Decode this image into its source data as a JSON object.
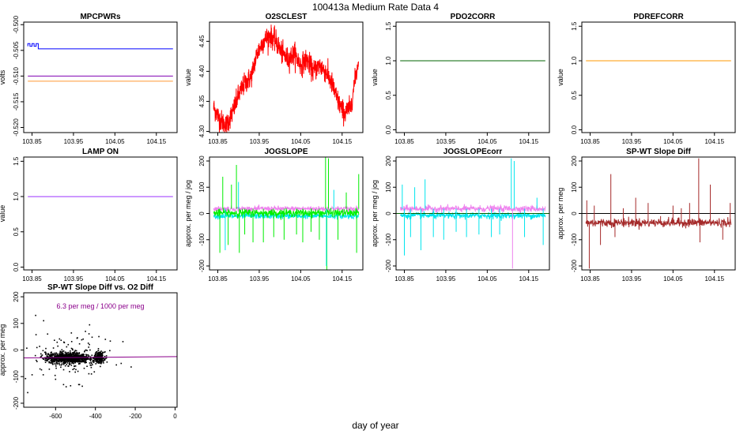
{
  "page": {
    "title": "100413a   Medium Rate Data 4",
    "xlabel": "day of year"
  },
  "chart_data": [
    {
      "id": "mpcpwrs",
      "type": "line",
      "title": "MPCPWRs",
      "ylabel": "volts",
      "xlim": [
        103.83,
        104.2
      ],
      "ylim": [
        -0.521,
        -0.4995
      ],
      "xticks": [
        103.85,
        103.95,
        104.05,
        104.15
      ],
      "xtick_labels": [
        "103.85",
        "103.95",
        "104.05",
        "104.15"
      ],
      "yticks": [
        -0.52,
        -0.515,
        -0.51,
        -0.505,
        -0.5
      ],
      "ytick_labels": [
        "-0.520",
        "-0.515",
        "-0.510",
        "-0.505",
        "-0.500"
      ],
      "series": [
        {
          "name": "blue",
          "color": "#0000ff",
          "x": [
            103.84,
            103.84,
            103.845,
            103.845,
            103.85,
            103.85,
            103.855,
            103.855,
            103.86,
            103.86,
            103.865,
            103.865,
            104.19
          ],
          "y": [
            -0.5042,
            -0.5037,
            -0.5037,
            -0.5042,
            -0.5042,
            -0.5037,
            -0.5037,
            -0.5042,
            -0.5042,
            -0.5037,
            -0.5037,
            -0.5047,
            -0.5047
          ]
        },
        {
          "name": "purple",
          "color": "#7f00b2",
          "x": [
            103.84,
            104.19
          ],
          "y": [
            -0.51,
            -0.51
          ]
        },
        {
          "name": "orange",
          "color": "#ff9933",
          "x": [
            103.84,
            104.19
          ],
          "y": [
            -0.511,
            -0.511
          ]
        }
      ]
    },
    {
      "id": "o2sclest",
      "type": "line",
      "title": "O2SCLEST",
      "ylabel": "value",
      "xlim": [
        103.83,
        104.2
      ],
      "ylim": [
        4.298,
        4.482
      ],
      "xticks": [
        103.85,
        103.95,
        104.05,
        104.15
      ],
      "xtick_labels": [
        "103.85",
        "103.95",
        "104.05",
        "104.15"
      ],
      "yticks": [
        4.3,
        4.35,
        4.4,
        4.45
      ],
      "ytick_labels": [
        "4.30",
        "4.35",
        "4.40",
        "4.45"
      ],
      "series": [
        {
          "name": "O2SCLEST",
          "color": "#ff0000",
          "noise": 0.009,
          "x": [
            103.84,
            103.855,
            103.87,
            103.885,
            103.9,
            103.915,
            103.93,
            103.945,
            103.96,
            103.975,
            103.99,
            104.005,
            104.02,
            104.035,
            104.05,
            104.065,
            104.08,
            104.095,
            104.11,
            104.125,
            104.14,
            104.155,
            104.17,
            104.19
          ],
          "y": [
            4.34,
            4.32,
            4.31,
            4.33,
            4.36,
            4.38,
            4.39,
            4.43,
            4.45,
            4.46,
            4.45,
            4.43,
            4.42,
            4.43,
            4.41,
            4.42,
            4.4,
            4.41,
            4.4,
            4.38,
            4.35,
            4.33,
            4.34,
            4.42
          ]
        }
      ]
    },
    {
      "id": "pdo2corr",
      "type": "line",
      "title": "PDO2CORR",
      "ylabel": "value",
      "xlim": [
        103.83,
        104.2
      ],
      "ylim": [
        -0.04,
        1.56
      ],
      "xticks": [
        103.85,
        103.95,
        104.05,
        104.15
      ],
      "xtick_labels": [
        "103.85",
        "103.95",
        "104.05",
        "104.15"
      ],
      "yticks": [
        0.0,
        0.5,
        1.0,
        1.5
      ],
      "ytick_labels": [
        "0.0",
        "0.5",
        "1.0",
        "1.5"
      ],
      "series": [
        {
          "name": "PDO2CORR",
          "color": "#006400",
          "x": [
            103.84,
            104.19
          ],
          "y": [
            1.0,
            1.0
          ]
        }
      ]
    },
    {
      "id": "pdrefcorr",
      "type": "line",
      "title": "PDREFCORR",
      "ylabel": "value",
      "xlim": [
        103.83,
        104.2
      ],
      "ylim": [
        -0.04,
        1.56
      ],
      "xticks": [
        103.85,
        103.95,
        104.05,
        104.15
      ],
      "xtick_labels": [
        "103.85",
        "103.95",
        "104.05",
        "104.15"
      ],
      "yticks": [
        0.0,
        0.5,
        1.0,
        1.5
      ],
      "ytick_labels": [
        "0.0",
        "0.5",
        "1.0",
        "1.5"
      ],
      "series": [
        {
          "name": "PDREFCORR",
          "color": "#ff9900",
          "x": [
            103.84,
            104.19
          ],
          "y": [
            1.0,
            1.0
          ]
        }
      ]
    },
    {
      "id": "lampon",
      "type": "line",
      "title": "LAMP ON",
      "ylabel": "value",
      "xlim": [
        103.83,
        104.2
      ],
      "ylim": [
        -0.04,
        1.56
      ],
      "xticks": [
        103.85,
        103.95,
        104.05,
        104.15
      ],
      "xtick_labels": [
        "103.85",
        "103.95",
        "104.05",
        "104.15"
      ],
      "yticks": [
        0.0,
        0.5,
        1.0,
        1.5
      ],
      "ytick_labels": [
        "0.0",
        "0.5",
        "1.0",
        "1.5"
      ],
      "series": [
        {
          "name": "LAMP ON",
          "color": "#9b30ff",
          "x": [
            103.84,
            104.19
          ],
          "y": [
            1.0,
            1.0
          ]
        }
      ]
    },
    {
      "id": "jogslope",
      "type": "line",
      "title": "JOGSLOPE",
      "ylabel": "approx. per meg / jog",
      "xlim": [
        103.83,
        104.2
      ],
      "ylim": [
        -215,
        215
      ],
      "xticks": [
        103.85,
        103.95,
        104.05,
        104.15
      ],
      "xtick_labels": [
        "103.85",
        "103.95",
        "104.05",
        "104.15"
      ],
      "yticks": [
        -200,
        -100,
        0,
        100,
        200
      ],
      "ytick_labels": [
        "-200",
        "-100",
        "0",
        "100",
        "200"
      ],
      "series": [
        {
          "name": "violet",
          "color": "#ee82ee",
          "level": 18,
          "noise": 5
        },
        {
          "name": "cyan",
          "color": "#00e5ee",
          "level": -10,
          "noise": 5
        },
        {
          "name": "green",
          "color": "#00ee00",
          "level": 2,
          "noise": 7
        }
      ],
      "spikes": [
        {
          "x": 103.855,
          "y": -150,
          "color": "#00ee00"
        },
        {
          "x": 103.862,
          "y": 140,
          "color": "#00ee00"
        },
        {
          "x": 103.875,
          "y": -120,
          "color": "#00ee00"
        },
        {
          "x": 103.883,
          "y": 110,
          "color": "#00ee00"
        },
        {
          "x": 103.895,
          "y": 185,
          "color": "#00ee00"
        },
        {
          "x": 103.902,
          "y": -150,
          "color": "#00ee00"
        },
        {
          "x": 103.915,
          "y": -80,
          "color": "#00ee00"
        },
        {
          "x": 103.935,
          "y": -110,
          "color": "#00ee00"
        },
        {
          "x": 103.96,
          "y": -110,
          "color": "#00ee00"
        },
        {
          "x": 103.985,
          "y": -90,
          "color": "#00ee00"
        },
        {
          "x": 104.01,
          "y": -100,
          "color": "#00ee00"
        },
        {
          "x": 104.04,
          "y": -80,
          "color": "#00ee00"
        },
        {
          "x": 104.055,
          "y": -110,
          "color": "#00ee00"
        },
        {
          "x": 104.075,
          "y": -70,
          "color": "#00ee00"
        },
        {
          "x": 104.095,
          "y": -100,
          "color": "#00ee00"
        },
        {
          "x": 104.11,
          "y": 215,
          "color": "#00ee00"
        },
        {
          "x": 104.113,
          "y": -215,
          "color": "#00ee00"
        },
        {
          "x": 104.117,
          "y": 210,
          "color": "#00ee00"
        },
        {
          "x": 104.14,
          "y": -100,
          "color": "#00ee00"
        },
        {
          "x": 104.16,
          "y": 80,
          "color": "#00ee00"
        },
        {
          "x": 104.185,
          "y": -150,
          "color": "#00ee00"
        },
        {
          "x": 104.19,
          "y": 150,
          "color": "#00ee00"
        },
        {
          "x": 103.868,
          "y": -140,
          "color": "#00e5ee"
        },
        {
          "x": 103.9,
          "y": 120,
          "color": "#00e5ee"
        },
        {
          "x": 104.112,
          "y": -200,
          "color": "#00e5ee"
        },
        {
          "x": 104.13,
          "y": 90,
          "color": "#00e5ee"
        }
      ]
    },
    {
      "id": "jogslopecorr",
      "type": "line",
      "title": "JOGSLOPEcorr",
      "ylabel": "approx. per meg / jog",
      "xlim": [
        103.83,
        104.2
      ],
      "ylim": [
        -215,
        215
      ],
      "xticks": [
        103.85,
        103.95,
        104.05,
        104.15
      ],
      "xtick_labels": [
        "103.85",
        "103.95",
        "104.05",
        "104.15"
      ],
      "yticks": [
        -200,
        -100,
        0,
        100,
        200
      ],
      "ytick_labels": [
        "-200",
        "-100",
        "0",
        "100",
        "200"
      ],
      "series": [
        {
          "name": "violet",
          "color": "#ee82ee",
          "level": 18,
          "noise": 6
        },
        {
          "name": "cyan",
          "color": "#00e5ee",
          "level": -8,
          "noise": 6
        },
        {
          "name": "zero",
          "color": "#006400",
          "level": 0,
          "noise": 0
        }
      ],
      "spikes": [
        {
          "x": 103.845,
          "y": 110,
          "color": "#00e5ee"
        },
        {
          "x": 103.85,
          "y": -160,
          "color": "#00e5ee"
        },
        {
          "x": 103.865,
          "y": -90,
          "color": "#00e5ee"
        },
        {
          "x": 103.875,
          "y": 100,
          "color": "#00e5ee"
        },
        {
          "x": 103.89,
          "y": -140,
          "color": "#00e5ee"
        },
        {
          "x": 103.9,
          "y": 130,
          "color": "#00e5ee"
        },
        {
          "x": 103.92,
          "y": -90,
          "color": "#00e5ee"
        },
        {
          "x": 103.945,
          "y": -100,
          "color": "#00e5ee"
        },
        {
          "x": 103.975,
          "y": -70,
          "color": "#00e5ee"
        },
        {
          "x": 104.0,
          "y": -90,
          "color": "#00e5ee"
        },
        {
          "x": 104.03,
          "y": -80,
          "color": "#00e5ee"
        },
        {
          "x": 104.06,
          "y": -90,
          "color": "#00e5ee"
        },
        {
          "x": 104.08,
          "y": -80,
          "color": "#00e5ee"
        },
        {
          "x": 104.108,
          "y": 210,
          "color": "#00e5ee"
        },
        {
          "x": 104.111,
          "y": -210,
          "color": "#ee82ee"
        },
        {
          "x": 104.115,
          "y": 200,
          "color": "#00e5ee"
        },
        {
          "x": 104.14,
          "y": -90,
          "color": "#00e5ee"
        },
        {
          "x": 104.17,
          "y": 60,
          "color": "#00e5ee"
        },
        {
          "x": 104.185,
          "y": -120,
          "color": "#00e5ee"
        }
      ]
    },
    {
      "id": "spwt",
      "type": "line",
      "title": "SP-WT Slope Diff",
      "ylabel": "approx. per meg",
      "xlim": [
        103.83,
        104.2
      ],
      "ylim": [
        -215,
        215
      ],
      "xticks": [
        103.85,
        103.95,
        104.05,
        104.15
      ],
      "xtick_labels": [
        "103.85",
        "103.95",
        "104.05",
        "104.15"
      ],
      "yticks": [
        -200,
        -100,
        0,
        100,
        200
      ],
      "ytick_labels": [
        "-200",
        "-100",
        "0",
        "100",
        "200"
      ],
      "series": [
        {
          "name": "SP-WT",
          "color": "#a52a2a",
          "level": -35,
          "noise": 8
        },
        {
          "name": "zero",
          "color": "#000000",
          "level": 0,
          "noise": 0
        }
      ],
      "spikes": [
        {
          "x": 103.842,
          "y": 50,
          "color": "#a52a2a"
        },
        {
          "x": 103.848,
          "y": -210,
          "color": "#a52a2a"
        },
        {
          "x": 103.86,
          "y": 30,
          "color": "#a52a2a"
        },
        {
          "x": 103.875,
          "y": -120,
          "color": "#a52a2a"
        },
        {
          "x": 103.9,
          "y": 150,
          "color": "#a52a2a"
        },
        {
          "x": 103.91,
          "y": -90,
          "color": "#a52a2a"
        },
        {
          "x": 103.93,
          "y": 20,
          "color": "#a52a2a"
        },
        {
          "x": 103.96,
          "y": 60,
          "color": "#a52a2a"
        },
        {
          "x": 103.99,
          "y": 40,
          "color": "#a52a2a"
        },
        {
          "x": 104.02,
          "y": -10,
          "color": "#a52a2a"
        },
        {
          "x": 104.05,
          "y": 30,
          "color": "#a52a2a"
        },
        {
          "x": 104.07,
          "y": 20,
          "color": "#a52a2a"
        },
        {
          "x": 104.09,
          "y": 40,
          "color": "#a52a2a"
        },
        {
          "x": 104.112,
          "y": 210,
          "color": "#a52a2a"
        },
        {
          "x": 104.115,
          "y": -110,
          "color": "#a52a2a"
        },
        {
          "x": 104.14,
          "y": 110,
          "color": "#a52a2a"
        },
        {
          "x": 104.17,
          "y": -100,
          "color": "#a52a2a"
        },
        {
          "x": 104.188,
          "y": 40,
          "color": "#a52a2a"
        }
      ]
    },
    {
      "id": "scatter",
      "type": "scatter",
      "title": "SP-WT Slope Diff vs. O2 Diff",
      "ylabel": "approx. per meg",
      "xlim": [
        -760,
        10
      ],
      "ylim": [
        -215,
        215
      ],
      "xticks": [
        -600,
        -400,
        -200,
        0
      ],
      "xtick_labels": [
        "-600",
        "-400",
        "-200",
        "0"
      ],
      "yticks": [
        -200,
        -100,
        0,
        100,
        200
      ],
      "ytick_labels": [
        "-200",
        "-100",
        "0",
        "100",
        "200"
      ],
      "annotation": "6.3 per meg / 1000 per meg",
      "annotation_color": "#8b008b",
      "fit": {
        "color": "#8b008b",
        "slope": 0.0063,
        "intercept": -25
      },
      "clusters": [
        {
          "cx": -540,
          "cy": -30,
          "sx": 55,
          "sy": 10,
          "n": 900
        },
        {
          "cx": -380,
          "cy": -28,
          "sx": 12,
          "sy": 10,
          "n": 220
        },
        {
          "cx": -520,
          "cy": -30,
          "sx": 110,
          "sy": 45,
          "n": 130
        }
      ],
      "outliers": [
        [
          -700,
          130
        ],
        [
          -660,
          110
        ],
        [
          -740,
          -160
        ],
        [
          -600,
          -110
        ],
        [
          -480,
          -130
        ],
        [
          -450,
          70
        ],
        [
          -350,
          40
        ],
        [
          -640,
          60
        ],
        [
          -560,
          -130
        ],
        [
          -420,
          -90
        ]
      ]
    }
  ]
}
